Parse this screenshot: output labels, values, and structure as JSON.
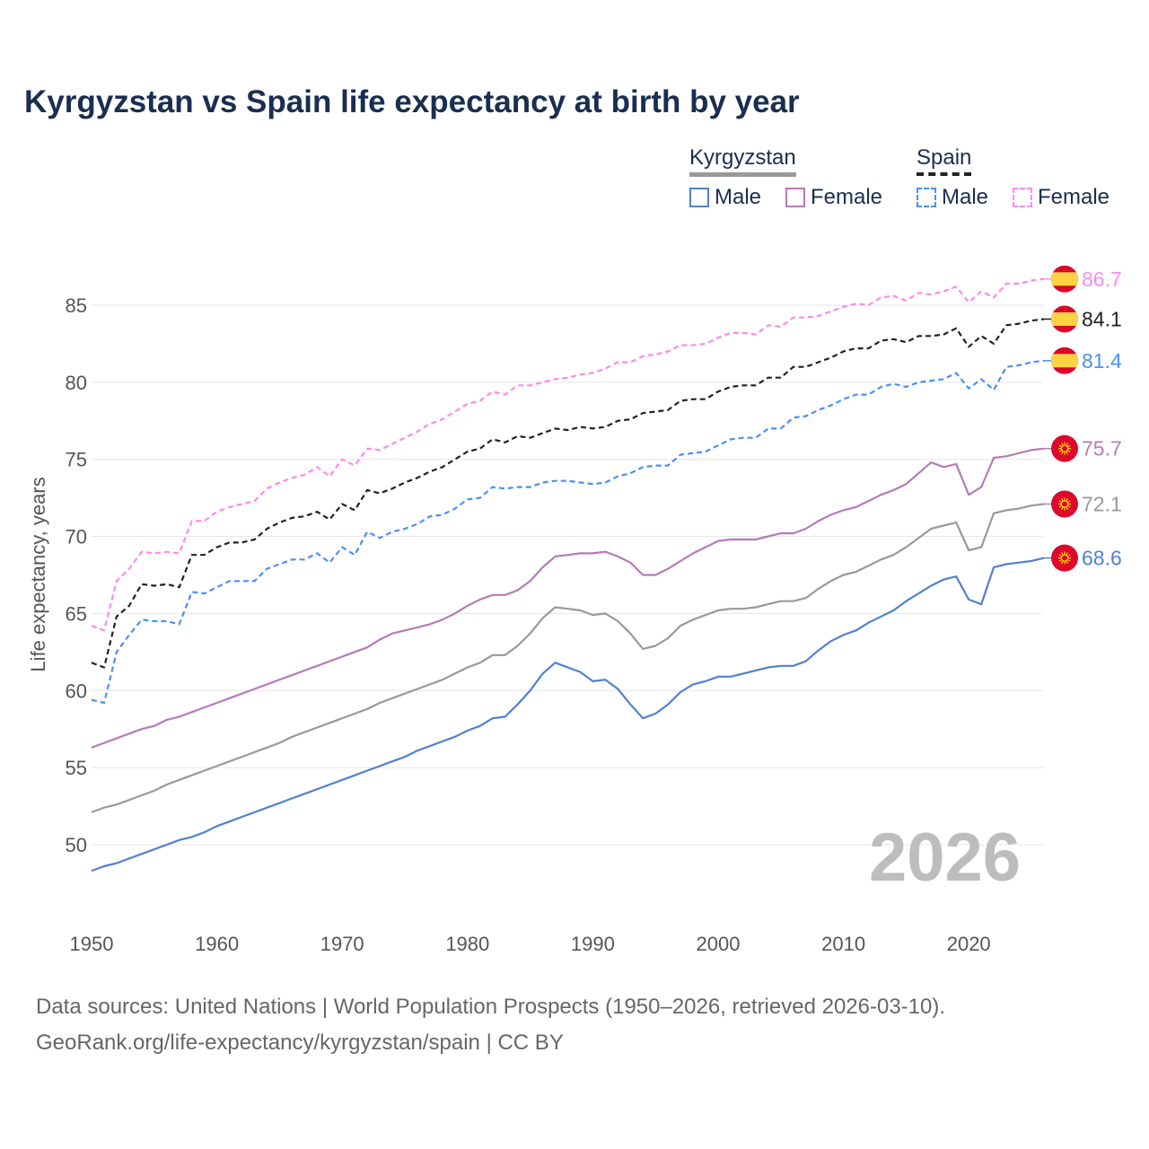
{
  "title": "Kyrgyzstan vs Spain life expectancy at birth by year",
  "legend": {
    "kyrgyzstan": {
      "label": "Kyrgyzstan",
      "male": "Male",
      "female": "Female"
    },
    "spain": {
      "label": "Spain",
      "male": "Male",
      "female": "Female"
    }
  },
  "year_watermark": "2026",
  "source_line1": "Data sources: United Nations | World Population Prospects (1950–2026, retrieved 2026-03-10).",
  "source_line2": "GeoRank.org/life-expectancy/kyrgyzstan/spain | CC BY",
  "chart_data": {
    "type": "line",
    "title": "Kyrgyzstan vs Spain life expectancy at birth by year",
    "xlabel": "",
    "ylabel": "Life expectancy, years",
    "xlim": [
      1950,
      2026
    ],
    "ylim": [
      45.5,
      89
    ],
    "xticks": [
      1950,
      1960,
      1970,
      1980,
      1990,
      2000,
      2010,
      2020
    ],
    "yticks": [
      50,
      55,
      60,
      65,
      70,
      75,
      80,
      85
    ],
    "grid": true,
    "x_start": 1950,
    "series": [
      {
        "name": "Spain Female",
        "country": "Spain",
        "flag": "spain",
        "color": "#ff88ee",
        "dashed": true,
        "end_label": "86.7",
        "values": [
          64.2,
          63.9,
          67.1,
          67.9,
          69.0,
          68.9,
          69.0,
          68.9,
          71.0,
          71.0,
          71.6,
          71.9,
          72.1,
          72.3,
          73.1,
          73.5,
          73.8,
          74.0,
          74.5,
          73.9,
          75.0,
          74.6,
          75.7,
          75.6,
          76.0,
          76.4,
          76.8,
          77.3,
          77.6,
          78.1,
          78.6,
          78.8,
          79.4,
          79.2,
          79.8,
          79.8,
          80.0,
          80.2,
          80.3,
          80.5,
          80.6,
          80.9,
          81.3,
          81.3,
          81.7,
          81.8,
          82.0,
          82.4,
          82.4,
          82.5,
          82.9,
          83.2,
          83.2,
          83.1,
          83.7,
          83.6,
          84.2,
          84.2,
          84.3,
          84.6,
          84.9,
          85.1,
          85.0,
          85.5,
          85.6,
          85.3,
          85.8,
          85.7,
          85.9,
          86.2,
          85.2,
          85.9,
          85.5,
          86.4,
          86.4,
          86.6,
          86.7
        ]
      },
      {
        "name": "Spain",
        "country": "Spain",
        "flag": "spain",
        "color": "#222222",
        "dashed": true,
        "end_label": "84.1",
        "values": [
          61.8,
          61.5,
          64.8,
          65.5,
          66.9,
          66.8,
          66.9,
          66.7,
          68.8,
          68.8,
          69.3,
          69.6,
          69.6,
          69.8,
          70.5,
          70.9,
          71.2,
          71.3,
          71.6,
          71.1,
          72.1,
          71.7,
          73.0,
          72.8,
          73.1,
          73.5,
          73.8,
          74.2,
          74.5,
          75.0,
          75.5,
          75.7,
          76.3,
          76.1,
          76.5,
          76.4,
          76.7,
          77.0,
          76.9,
          77.1,
          77.0,
          77.1,
          77.5,
          77.6,
          78.0,
          78.1,
          78.2,
          78.8,
          78.9,
          78.9,
          79.4,
          79.7,
          79.8,
          79.8,
          80.3,
          80.3,
          81.0,
          81.0,
          81.3,
          81.6,
          82.0,
          82.2,
          82.2,
          82.7,
          82.8,
          82.6,
          83.0,
          83.0,
          83.1,
          83.5,
          82.3,
          83.0,
          82.5,
          83.7,
          83.8,
          84.0,
          84.1
        ]
      },
      {
        "name": "Spain Male",
        "country": "Spain",
        "flag": "spain",
        "color": "#4a90f5",
        "dashed": true,
        "end_label": "81.4",
        "values": [
          59.4,
          59.2,
          62.5,
          63.6,
          64.6,
          64.5,
          64.5,
          64.3,
          66.4,
          66.3,
          66.7,
          67.1,
          67.1,
          67.1,
          67.9,
          68.2,
          68.5,
          68.5,
          68.9,
          68.3,
          69.3,
          68.8,
          70.3,
          69.9,
          70.3,
          70.5,
          70.8,
          71.3,
          71.4,
          71.8,
          72.4,
          72.5,
          73.2,
          73.1,
          73.2,
          73.2,
          73.5,
          73.6,
          73.6,
          73.5,
          73.4,
          73.5,
          73.9,
          74.1,
          74.5,
          74.6,
          74.6,
          75.3,
          75.4,
          75.5,
          75.9,
          76.3,
          76.4,
          76.4,
          77.0,
          77.0,
          77.7,
          77.8,
          78.2,
          78.5,
          78.9,
          79.2,
          79.2,
          79.7,
          79.9,
          79.7,
          80.0,
          80.1,
          80.2,
          80.6,
          79.6,
          80.2,
          79.5,
          81.0,
          81.1,
          81.3,
          81.4
        ]
      },
      {
        "name": "Kyrgyzstan Female",
        "country": "Kyrgyzstan",
        "flag": "kyrgyzstan",
        "color": "#b57ab8",
        "dashed": false,
        "end_label": "75.7",
        "values": [
          56.3,
          56.6,
          56.9,
          57.2,
          57.5,
          57.7,
          58.1,
          58.3,
          58.6,
          58.9,
          59.2,
          59.5,
          59.8,
          60.1,
          60.4,
          60.7,
          61.0,
          61.3,
          61.6,
          61.9,
          62.2,
          62.5,
          62.8,
          63.3,
          63.7,
          63.9,
          64.1,
          64.3,
          64.6,
          65.0,
          65.5,
          65.9,
          66.2,
          66.2,
          66.5,
          67.1,
          68.0,
          68.7,
          68.8,
          68.9,
          68.9,
          69.0,
          68.7,
          68.3,
          67.5,
          67.5,
          67.9,
          68.4,
          68.9,
          69.3,
          69.7,
          69.8,
          69.8,
          69.8,
          70.0,
          70.2,
          70.2,
          70.5,
          71.0,
          71.4,
          71.7,
          71.9,
          72.3,
          72.7,
          73.0,
          73.4,
          74.1,
          74.8,
          74.5,
          74.7,
          72.7,
          73.2,
          75.1,
          75.2,
          75.4,
          75.6,
          75.7
        ]
      },
      {
        "name": "Kyrgyzstan",
        "country": "Kyrgyzstan",
        "flag": "kyrgyzstan",
        "color": "#999999",
        "dashed": false,
        "end_label": "72.1",
        "values": [
          52.1,
          52.4,
          52.6,
          52.9,
          53.2,
          53.5,
          53.9,
          54.2,
          54.5,
          54.8,
          55.1,
          55.4,
          55.7,
          56.0,
          56.3,
          56.6,
          57.0,
          57.3,
          57.6,
          57.9,
          58.2,
          58.5,
          58.8,
          59.2,
          59.5,
          59.8,
          60.1,
          60.4,
          60.7,
          61.1,
          61.5,
          61.8,
          62.3,
          62.3,
          62.9,
          63.7,
          64.7,
          65.4,
          65.3,
          65.2,
          64.9,
          65.0,
          64.5,
          63.7,
          62.7,
          62.9,
          63.4,
          64.2,
          64.6,
          64.9,
          65.2,
          65.3,
          65.3,
          65.4,
          65.6,
          65.8,
          65.8,
          66.0,
          66.6,
          67.1,
          67.5,
          67.7,
          68.1,
          68.5,
          68.8,
          69.3,
          69.9,
          70.5,
          70.7,
          70.9,
          69.1,
          69.3,
          71.5,
          71.7,
          71.8,
          72.0,
          72.1
        ]
      },
      {
        "name": "Kyrgyzstan Male",
        "country": "Kyrgyzstan",
        "flag": "kyrgyzstan",
        "color": "#5080d0",
        "dashed": false,
        "end_label": "68.6",
        "values": [
          48.3,
          48.6,
          48.8,
          49.1,
          49.4,
          49.7,
          50.0,
          50.3,
          50.5,
          50.8,
          51.2,
          51.5,
          51.8,
          52.1,
          52.4,
          52.7,
          53.0,
          53.3,
          53.6,
          53.9,
          54.2,
          54.5,
          54.8,
          55.1,
          55.4,
          55.7,
          56.1,
          56.4,
          56.7,
          57.0,
          57.4,
          57.7,
          58.2,
          58.3,
          59.1,
          60.0,
          61.1,
          61.8,
          61.5,
          61.2,
          60.6,
          60.7,
          60.1,
          59.1,
          58.2,
          58.5,
          59.1,
          59.9,
          60.4,
          60.6,
          60.9,
          60.9,
          61.1,
          61.3,
          61.5,
          61.6,
          61.6,
          61.9,
          62.6,
          63.2,
          63.6,
          63.9,
          64.4,
          64.8,
          65.2,
          65.8,
          66.3,
          66.8,
          67.2,
          67.4,
          65.9,
          65.6,
          68.0,
          68.2,
          68.3,
          68.4,
          68.6
        ]
      }
    ]
  }
}
